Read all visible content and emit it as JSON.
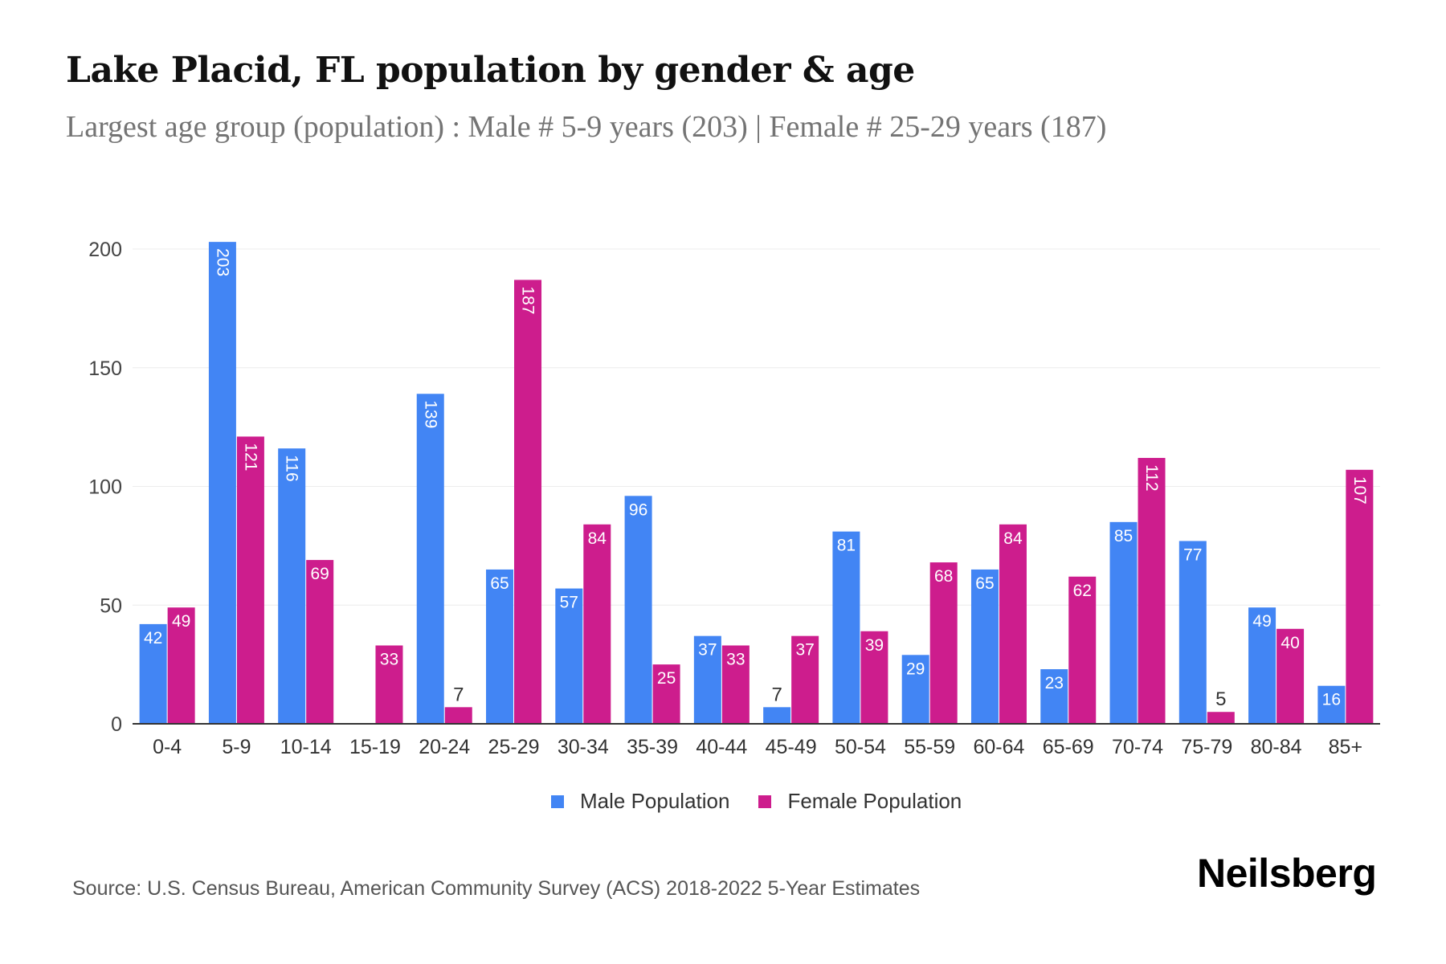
{
  "header": {
    "title": "Lake Placid, FL population by gender & age",
    "subtitle": "Largest age group (population) : Male # 5-9 years (203) | Female # 25-29 years (187)"
  },
  "colors": {
    "male": "#4285F4",
    "female": "#CD1D8D",
    "gridline": "#ececec",
    "axis": "#333333"
  },
  "legend": {
    "items": [
      {
        "label": "Male Population",
        "color": "#4285F4"
      },
      {
        "label": "Female Population",
        "color": "#CD1D8D"
      }
    ]
  },
  "footer": {
    "source": "Source: U.S. Census Bureau, American Community Survey (ACS) 2018-2022 5-Year Estimates",
    "logo": "Neilsberg"
  },
  "chart_data": {
    "type": "bar",
    "title": "Lake Placid, FL population by gender & age",
    "subtitle": "Largest age group (population) : Male # 5-9 years (203) | Female # 25-29 years (187)",
    "xlabel": "",
    "ylabel": "",
    "ylim": [
      0,
      200
    ],
    "yticks": [
      0,
      50,
      100,
      150,
      200
    ],
    "grid": true,
    "legend_position": "bottom",
    "categories": [
      "0-4",
      "5-9",
      "10-14",
      "15-19",
      "20-24",
      "25-29",
      "30-34",
      "35-39",
      "40-44",
      "45-49",
      "50-54",
      "55-59",
      "60-64",
      "65-69",
      "70-74",
      "75-79",
      "80-84",
      "85+"
    ],
    "series": [
      {
        "name": "Male Population",
        "values": [
          42,
          203,
          116,
          0,
          139,
          65,
          57,
          96,
          37,
          7,
          81,
          29,
          65,
          23,
          85,
          77,
          49,
          16
        ]
      },
      {
        "name": "Female Population",
        "values": [
          49,
          121,
          69,
          33,
          7,
          187,
          84,
          25,
          33,
          37,
          39,
          68,
          84,
          62,
          112,
          5,
          40,
          107
        ]
      }
    ]
  }
}
